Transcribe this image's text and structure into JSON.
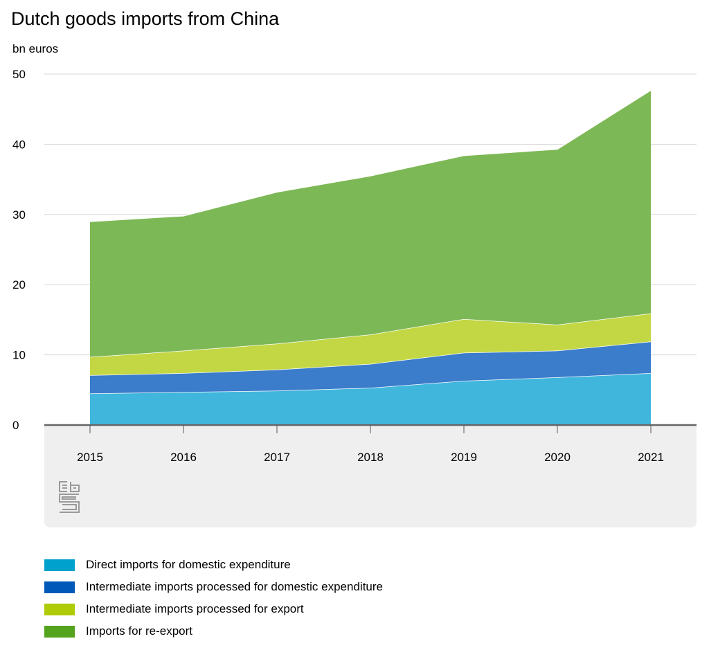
{
  "chart_data": {
    "type": "area",
    "stacked": true,
    "title": "Dutch goods imports from China",
    "ylabel": "bn euros",
    "xlabel": "",
    "categories": [
      "2015",
      "2016",
      "2017",
      "2018",
      "2019",
      "2020",
      "2021"
    ],
    "ylim": [
      0,
      50
    ],
    "yticks": [
      0,
      10,
      20,
      30,
      40,
      50
    ],
    "grid": true,
    "legend_position": "bottom",
    "series": [
      {
        "name": "Direct imports for domestic expenditure",
        "color": "#41b6dc",
        "values": [
          4.5,
          4.7,
          4.9,
          5.3,
          6.3,
          6.8,
          7.4
        ]
      },
      {
        "name": "Intermediate imports processed for domestic expenditure",
        "color": "#3b7ccb",
        "values": [
          2.6,
          2.7,
          3.0,
          3.4,
          4.0,
          3.8,
          4.5
        ]
      },
      {
        "name": "Intermediate imports processed for export",
        "color": "#c3d744",
        "values": [
          2.6,
          3.2,
          3.7,
          4.2,
          4.8,
          3.7,
          4.0
        ]
      },
      {
        "name": "Imports for re-export",
        "color": "#7db856",
        "values": [
          19.3,
          19.2,
          21.6,
          22.6,
          23.3,
          25.0,
          31.8
        ]
      }
    ],
    "legend_colors": [
      "#00a1cd",
      "#0058b8",
      "#afcb05",
      "#53a31d"
    ]
  }
}
